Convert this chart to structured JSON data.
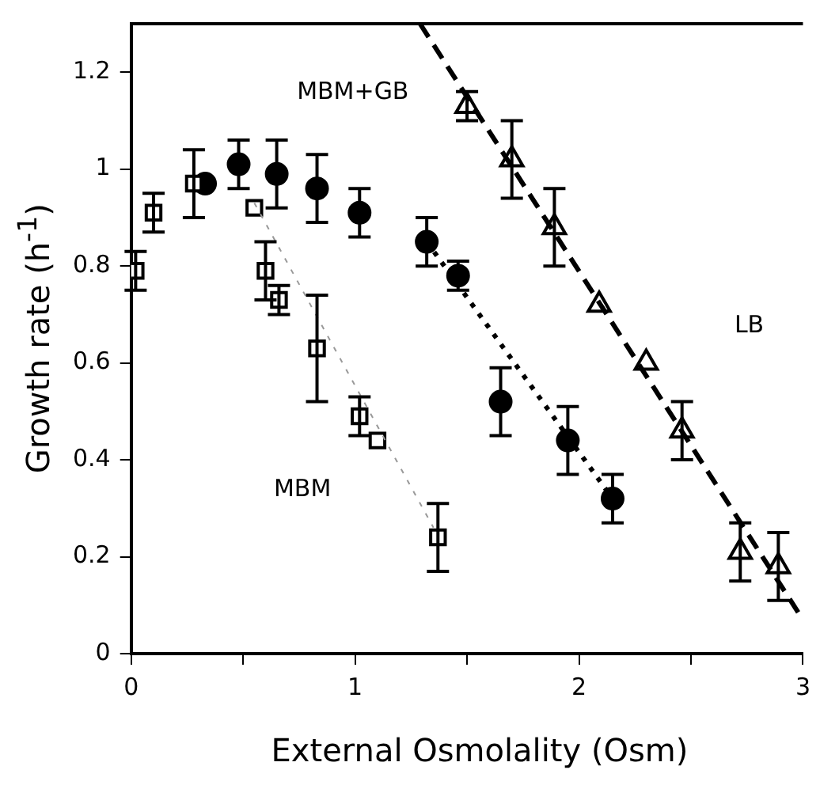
{
  "chart_data": {
    "type": "scatter",
    "xlabel": "External Osmolality (Osm)",
    "ylabel": "Growth rate (h$^{-1}$)",
    "xlim": [
      0,
      3
    ],
    "ylim": [
      0,
      1.3
    ],
    "xticks": [
      0,
      {
        "value": 0.5,
        "label": null
      },
      1,
      {
        "value": 1.5,
        "label": null
      },
      2,
      {
        "value": 2.5,
        "label": null
      },
      3
    ],
    "yticks": [
      0,
      0.2,
      0.4,
      0.6,
      0.8,
      1,
      1.2
    ],
    "grid": false,
    "legend": false,
    "series": [
      {
        "marker": "square",
        "color": "#000000",
        "x": [
          0.02,
          0.1,
          0.28,
          0.55,
          0.6,
          0.66,
          0.83,
          1.02,
          1.1,
          1.37
        ],
        "values": [
          0.79,
          0.91,
          0.97,
          0.92,
          0.79,
          0.73,
          0.63,
          0.49,
          0.44,
          0.24
        ],
        "errors": [
          0.04,
          0.04,
          0.07,
          null,
          0.06,
          0.03,
          0.11,
          0.04,
          null,
          0.07
        ]
      },
      {
        "marker": "circle",
        "color": "#000000",
        "x": [
          0.33,
          0.48,
          0.65,
          0.83,
          1.02,
          1.32,
          1.46,
          1.65,
          1.95,
          2.15
        ],
        "values": [
          0.97,
          1.01,
          0.99,
          0.96,
          0.91,
          0.85,
          0.78,
          0.52,
          0.44,
          0.32
        ],
        "errors": [
          null,
          0.05,
          0.07,
          0.07,
          0.05,
          0.05,
          0.03,
          0.07,
          0.07,
          0.05
        ]
      },
      {
        "marker": "triangle",
        "color": "#000000",
        "x": [
          1.5,
          1.7,
          1.89,
          2.09,
          2.3,
          2.46,
          2.72,
          2.89
        ],
        "values": [
          1.13,
          1.02,
          0.88,
          0.72,
          0.6,
          0.46,
          0.21,
          0.18
        ],
        "errors": [
          0.03,
          0.08,
          0.08,
          null,
          null,
          0.06,
          0.06,
          0.07
        ]
      },
      {
        "type": "line",
        "marker": "none",
        "line_style": "dotted",
        "color": "#999999",
        "x": [
          0.55,
          1.35
        ],
        "values": [
          0.93,
          0.26
        ]
      },
      {
        "type": "line",
        "marker": "none",
        "line_style": "dotted",
        "color": "#000000",
        "x": [
          1.32,
          2.15
        ],
        "values": [
          0.85,
          0.32
        ]
      },
      {
        "type": "line",
        "marker": "none",
        "line_style": "dashed",
        "color": "#000000",
        "x": [
          1.29,
          3
        ],
        "values": [
          1.3,
          0.07
        ]
      }
    ],
    "annotations": [
      "MBM+GB",
      "LB",
      "MBM"
    ]
  }
}
